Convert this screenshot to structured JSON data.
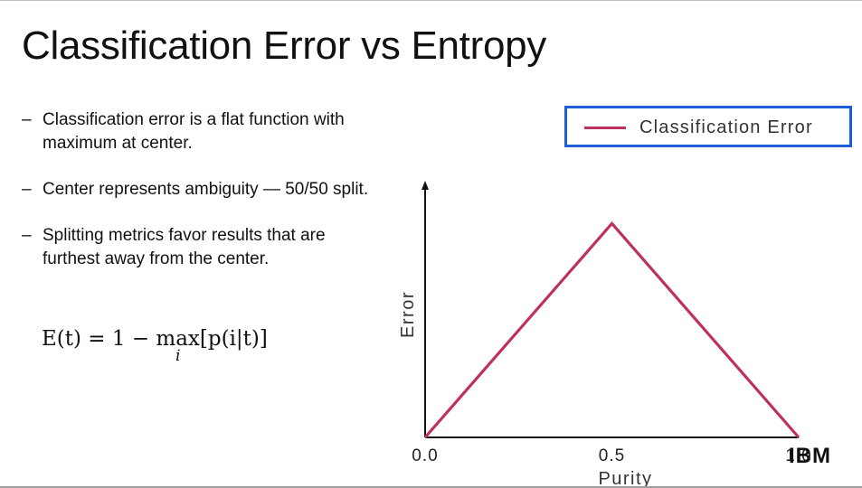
{
  "slide": {
    "title": "Classification Error vs Entropy",
    "bullets": [
      {
        "dash": "–",
        "text": "Classification error is a flat function with maximum at center."
      },
      {
        "dash": "–",
        "text": "Center represents ambiguity — 50/50 split."
      },
      {
        "dash": "–",
        "text": "Splitting metrics favor results that are furthest away from the center."
      }
    ],
    "formula": {
      "lhs": "E(t) = 1 − ",
      "op": "max",
      "sub": "i",
      "rhs": "[p(i|t)]"
    },
    "logo_text": "IBM"
  },
  "chart_data": {
    "type": "line",
    "xlabel": "Purity",
    "ylabel": "Error",
    "x_ticks": [
      "0.0",
      "0.5",
      "1.0"
    ],
    "xlim": [
      0,
      1
    ],
    "ylim": [
      0,
      0.6
    ],
    "legend": {
      "position": "top-right",
      "entries": [
        "Classification Error"
      ]
    },
    "grid": false,
    "series": [
      {
        "name": "Classification Error",
        "color": "#c0305f",
        "x": [
          0.0,
          0.5,
          1.0
        ],
        "y": [
          0.0,
          0.5,
          0.0
        ]
      }
    ]
  },
  "colors": {
    "series": "#c0305f",
    "legend_border": "#1a5fd6",
    "axis": "#111111"
  }
}
